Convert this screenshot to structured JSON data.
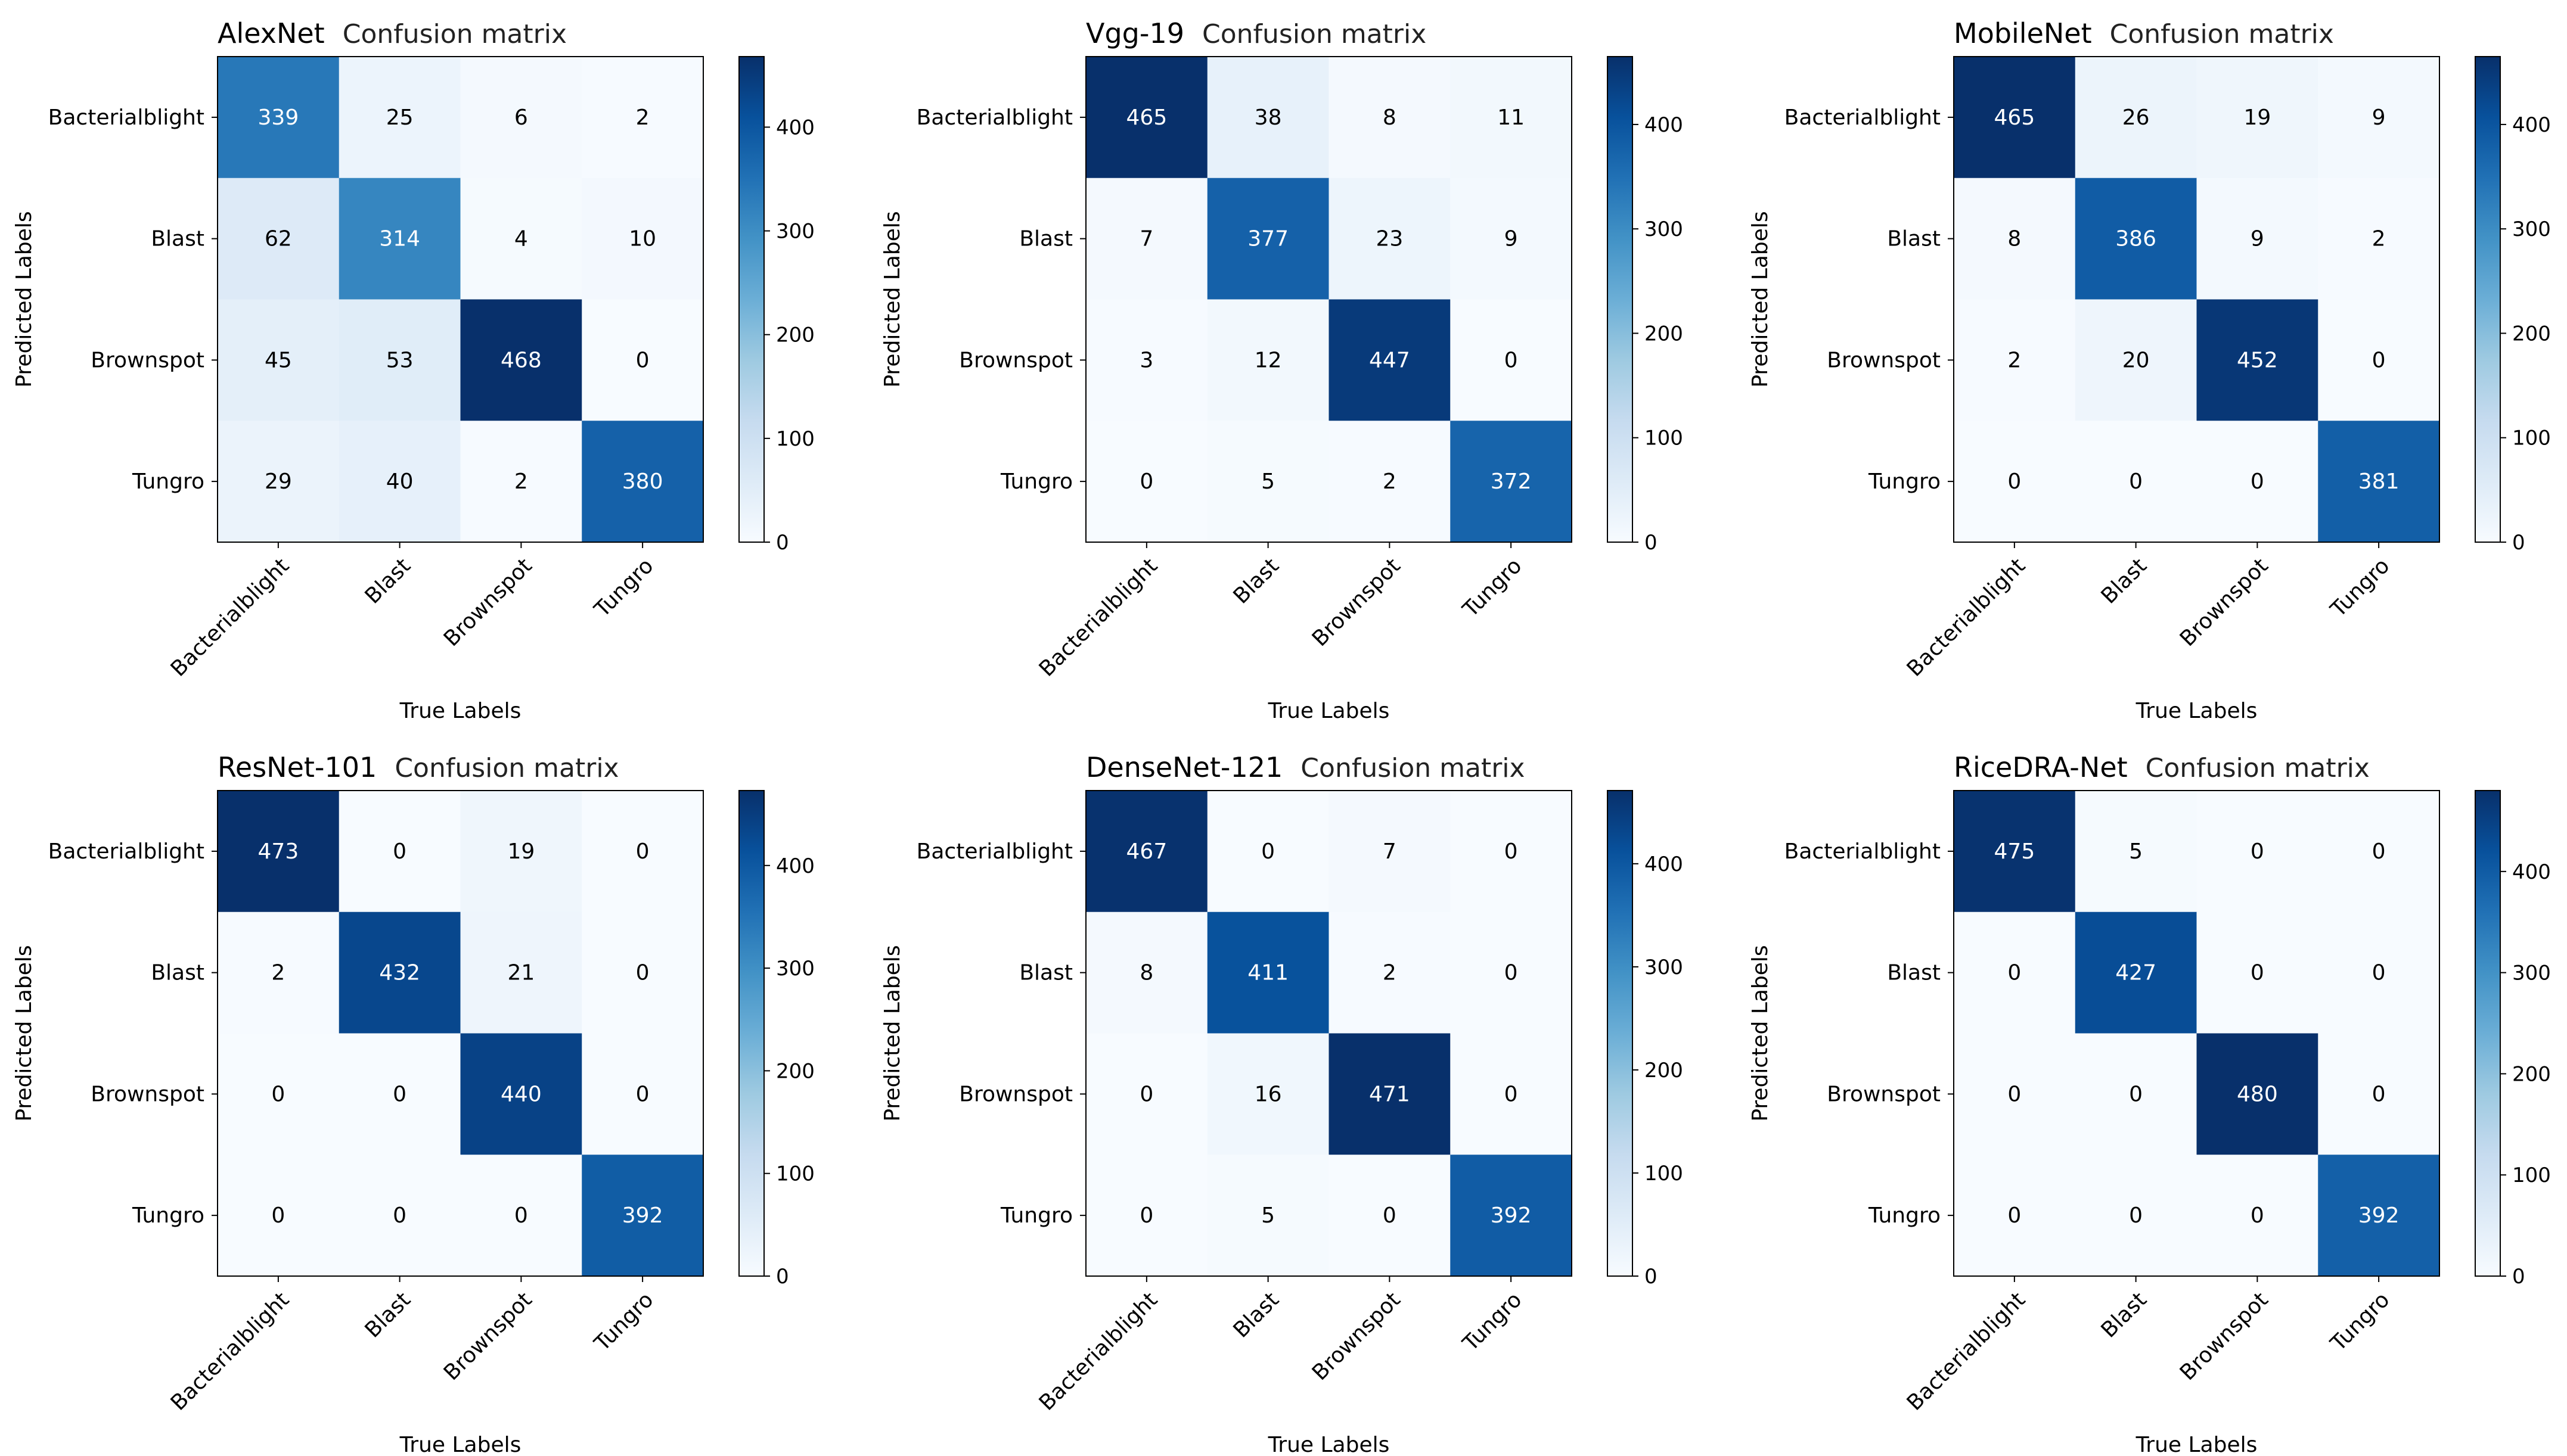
{
  "chart_data": [
    {
      "type": "heatmap",
      "model": "AlexNet",
      "title_suffix": "Confusion matrix",
      "xlabel": "True Labels",
      "ylabel": "Predicted Labels",
      "x_categories": [
        "Bacterialblight",
        "Blast",
        "Brownspot",
        "Tungro"
      ],
      "y_categories": [
        "Bacterialblight",
        "Blast",
        "Brownspot",
        "Tungro"
      ],
      "matrix": [
        [
          339,
          25,
          6,
          2
        ],
        [
          62,
          314,
          4,
          10
        ],
        [
          45,
          53,
          468,
          0
        ],
        [
          29,
          40,
          2,
          380
        ]
      ],
      "colorbar_ticks": [
        0,
        100,
        200,
        300,
        400
      ],
      "colorbar_range": [
        0,
        468
      ],
      "colormap": "Blues"
    },
    {
      "type": "heatmap",
      "model": "Vgg-19",
      "title_suffix": "Confusion matrix",
      "xlabel": "True Labels",
      "ylabel": "Predicted Labels",
      "x_categories": [
        "Bacterialblight",
        "Blast",
        "Brownspot",
        "Tungro"
      ],
      "y_categories": [
        "Bacterialblight",
        "Blast",
        "Brownspot",
        "Tungro"
      ],
      "matrix": [
        [
          465,
          38,
          8,
          11
        ],
        [
          7,
          377,
          23,
          9
        ],
        [
          3,
          12,
          447,
          0
        ],
        [
          0,
          5,
          2,
          372
        ]
      ],
      "colorbar_ticks": [
        0,
        100,
        200,
        300,
        400
      ],
      "colorbar_range": [
        0,
        465
      ],
      "colormap": "Blues"
    },
    {
      "type": "heatmap",
      "model": "MobileNet",
      "title_suffix": "Confusion matrix",
      "xlabel": "True Labels",
      "ylabel": "Predicted Labels",
      "x_categories": [
        "Bacterialblight",
        "Blast",
        "Brownspot",
        "Tungro"
      ],
      "y_categories": [
        "Bacterialblight",
        "Blast",
        "Brownspot",
        "Tungro"
      ],
      "matrix": [
        [
          465,
          26,
          19,
          9
        ],
        [
          8,
          386,
          9,
          2
        ],
        [
          2,
          20,
          452,
          0
        ],
        [
          0,
          0,
          0,
          381
        ]
      ],
      "colorbar_ticks": [
        0,
        100,
        200,
        300,
        400
      ],
      "colorbar_range": [
        0,
        465
      ],
      "colormap": "Blues"
    },
    {
      "type": "heatmap",
      "model": "ResNet-101",
      "title_suffix": "Confusion matrix",
      "xlabel": "True Labels",
      "ylabel": "Predicted Labels",
      "x_categories": [
        "Bacterialblight",
        "Blast",
        "Brownspot",
        "Tungro"
      ],
      "y_categories": [
        "Bacterialblight",
        "Blast",
        "Brownspot",
        "Tungro"
      ],
      "matrix": [
        [
          473,
          0,
          19,
          0
        ],
        [
          2,
          432,
          21,
          0
        ],
        [
          0,
          0,
          440,
          0
        ],
        [
          0,
          0,
          0,
          392
        ]
      ],
      "colorbar_ticks": [
        0,
        100,
        200,
        300,
        400
      ],
      "colorbar_range": [
        0,
        473
      ],
      "colormap": "Blues"
    },
    {
      "type": "heatmap",
      "model": "DenseNet-121",
      "title_suffix": "Confusion matrix",
      "xlabel": "True Labels",
      "ylabel": "Predicted Labels",
      "x_categories": [
        "Bacterialblight",
        "Blast",
        "Brownspot",
        "Tungro"
      ],
      "y_categories": [
        "Bacterialblight",
        "Blast",
        "Brownspot",
        "Tungro"
      ],
      "matrix": [
        [
          467,
          0,
          7,
          0
        ],
        [
          8,
          411,
          2,
          0
        ],
        [
          0,
          16,
          471,
          0
        ],
        [
          0,
          5,
          0,
          392
        ]
      ],
      "colorbar_ticks": [
        0,
        100,
        200,
        300,
        400
      ],
      "colorbar_range": [
        0,
        471
      ],
      "colormap": "Blues"
    },
    {
      "type": "heatmap",
      "model": "RiceDRA-Net",
      "title_suffix": "Confusion matrix",
      "xlabel": "True Labels",
      "ylabel": "Predicted Labels",
      "x_categories": [
        "Bacterialblight",
        "Blast",
        "Brownspot",
        "Tungro"
      ],
      "y_categories": [
        "Bacterialblight",
        "Blast",
        "Brownspot",
        "Tungro"
      ],
      "matrix": [
        [
          475,
          5,
          0,
          0
        ],
        [
          0,
          427,
          0,
          0
        ],
        [
          0,
          0,
          480,
          0
        ],
        [
          0,
          0,
          0,
          392
        ]
      ],
      "colorbar_ticks": [
        0,
        100,
        200,
        300,
        400
      ],
      "colorbar_range": [
        0,
        480
      ],
      "colormap": "Blues"
    }
  ]
}
